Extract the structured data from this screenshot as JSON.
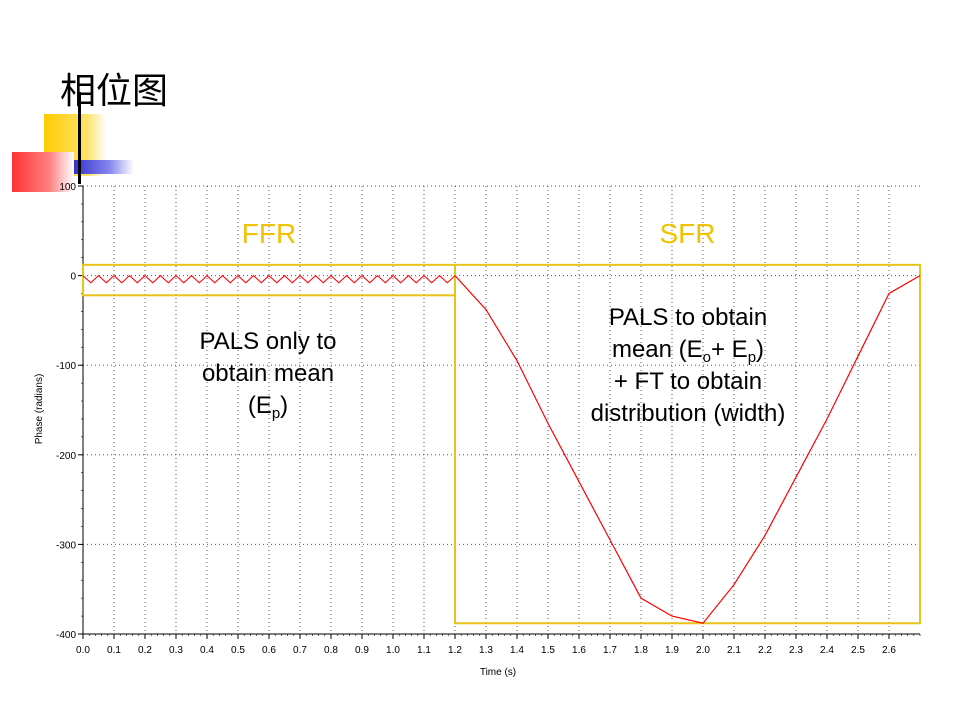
{
  "slide": {
    "title": "相位图"
  },
  "colors": {
    "series": "#ff0000",
    "region_box": "#e8c41a",
    "region_label": "#f2c200",
    "grid": "#555555",
    "deco_yellow": "#ffcc00",
    "deco_red": "#ff3333",
    "deco_blue": "#3333cc"
  },
  "chart_data": {
    "type": "line",
    "title": "",
    "xlabel": "Time (s)",
    "ylabel": "Phase (radians)",
    "xlim": [
      0,
      2.7
    ],
    "ylim": [
      -400,
      100
    ],
    "x_ticks": [
      "0.0",
      "0.1",
      "0.2",
      "0.3",
      "0.4",
      "0.5",
      "0.6",
      "0.7",
      "0.8",
      "0.9",
      "1.0",
      "1.1",
      "1.2",
      "1.3",
      "1.4",
      "1.5",
      "1.6",
      "1.7",
      "1.8",
      "1.9",
      "2.0",
      "2.1",
      "2.2",
      "2.3",
      "2.4",
      "2.5",
      "2.6"
    ],
    "y_ticks": [
      "100",
      "0",
      "-100",
      "-200",
      "-300",
      "-400"
    ],
    "grid": true,
    "series": [
      {
        "x": [
          1.2,
          1.3,
          1.4,
          1.5,
          1.6,
          1.7,
          1.8,
          1.9,
          2.0,
          2.1,
          2.2,
          2.3,
          2.4,
          2.5,
          2.6,
          2.7
        ],
        "values": [
          0,
          -38,
          -95,
          -165,
          -230,
          -295,
          -360,
          -380,
          -388,
          -345,
          -290,
          -225,
          -160,
          -90,
          -20,
          0
        ]
      }
    ],
    "ffr_oscillation": {
      "x_start": 0.0,
      "x_end": 1.2,
      "amplitude": 4,
      "cycles": 24
    },
    "regions": [
      {
        "label": "FFR",
        "x_start": 0.0,
        "x_end": 1.2,
        "y_top": 12,
        "y_bottom": -22
      },
      {
        "label": "SFR",
        "x_start": 1.2,
        "x_end": 2.7,
        "y_top": 12,
        "y_bottom": -388
      }
    ]
  },
  "annotations": {
    "ffr": {
      "line1": "PALS only to",
      "line2": "obtain mean",
      "line3_pre": "(E",
      "line3_sub": "p",
      "line3_post": ")"
    },
    "sfr": {
      "line1": "PALS to obtain",
      "line2_pre": "mean (E",
      "line2_sub1": "o",
      "line2_mid": "+ E",
      "line2_sub2": "p",
      "line2_post": ")",
      "line3": "+ FT to obtain",
      "line4": "distribution (width)"
    }
  }
}
